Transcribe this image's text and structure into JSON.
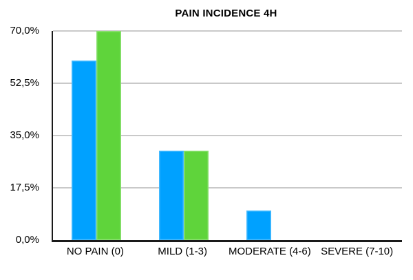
{
  "chart_data": {
    "type": "bar",
    "title": "PAIN INCIDENCE 4H",
    "categories": [
      "NO PAIN (0)",
      "MILD (1-3)",
      "MODERATE (4-6)",
      "SEVERE (7-10)"
    ],
    "series": [
      {
        "name": "blue",
        "color": "#00A1FF",
        "values": [
          60,
          30,
          10,
          0
        ]
      },
      {
        "name": "green",
        "color": "#5FD43B",
        "values": [
          70,
          30,
          0,
          0
        ]
      }
    ],
    "xlabel": "",
    "ylabel": "",
    "ylim": [
      0,
      70
    ],
    "yticks": [
      {
        "value": 0,
        "label": "0,0%"
      },
      {
        "value": 17.5,
        "label": "17,5%"
      },
      {
        "value": 35,
        "label": "35,0%"
      },
      {
        "value": 52.5,
        "label": "52,5%"
      },
      {
        "value": 70,
        "label": "70,0%"
      }
    ],
    "grid": true,
    "legend": "none",
    "colors": {
      "gridline": "#c9c9c9",
      "axis": "#1a1a1a",
      "text": "#000000",
      "background": "#ffffff"
    }
  }
}
